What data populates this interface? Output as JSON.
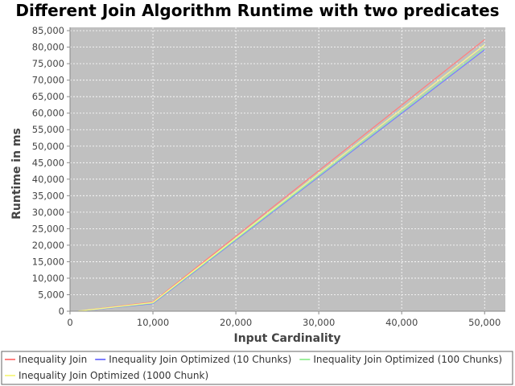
{
  "chart_data": {
    "type": "line",
    "title": "Different Join Algorithm Runtime with two predicates",
    "xlabel": "Input Cardinality",
    "ylabel": "Runtime in ms",
    "xlim": [
      0,
      52500
    ],
    "ylim": [
      0,
      86000
    ],
    "x_ticks": [
      0,
      10000,
      20000,
      30000,
      40000,
      50000
    ],
    "x_tick_labels": [
      "0",
      "10,000",
      "20,000",
      "30,000",
      "40,000",
      "50,000"
    ],
    "y_ticks": [
      0,
      5000,
      10000,
      15000,
      20000,
      25000,
      30000,
      35000,
      40000,
      45000,
      50000,
      55000,
      60000,
      65000,
      70000,
      75000,
      80000,
      85000
    ],
    "y_tick_labels": [
      "0",
      "5,000",
      "10,000",
      "15,000",
      "20,000",
      "25,000",
      "30,000",
      "35,000",
      "40,000",
      "45,000",
      "50,000",
      "55,000",
      "60,000",
      "65,000",
      "70,000",
      "75,000",
      "80,000",
      "85,000"
    ],
    "grid": true,
    "legend_position": "bottom",
    "plot_background": "#c0c0c0",
    "x": [
      1000,
      10000,
      50000
    ],
    "series": [
      {
        "name": "Inequality Join",
        "color": "#ff8080",
        "values": [
          60,
          2800,
          82300
        ]
      },
      {
        "name": "Inequality Join Optimized (10 Chunks)",
        "color": "#7c7cff",
        "values": [
          30,
          2300,
          79200
        ]
      },
      {
        "name": "Inequality Join Optimized (100 Chunks)",
        "color": "#9cef9c",
        "values": [
          40,
          2450,
          79700
        ]
      },
      {
        "name": "Inequality Join Optimized (1000 Chunk)",
        "color": "#f7f78c",
        "values": [
          50,
          2600,
          80700
        ]
      }
    ]
  }
}
